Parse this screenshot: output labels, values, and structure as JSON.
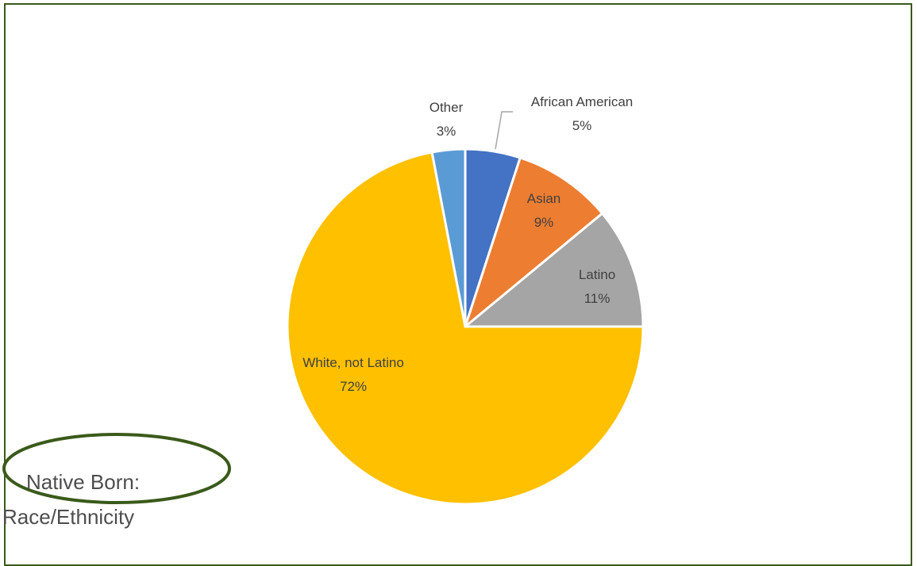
{
  "chart_data": {
    "type": "pie",
    "title": "",
    "slices": [
      {
        "label": "African American",
        "pct_label": "5%",
        "value": 5,
        "color": "#4472c4"
      },
      {
        "label": "Asian",
        "pct_label": "9%",
        "value": 9,
        "color": "#ed7d31"
      },
      {
        "label": "Latino",
        "pct_label": "11%",
        "value": 11,
        "color": "#a5a5a5"
      },
      {
        "label": "White, not Latino",
        "pct_label": "72%",
        "value": 72,
        "color": "#ffc000"
      },
      {
        "label": "Other",
        "pct_label": "3%",
        "value": 3,
        "color": "#5b9bd5"
      }
    ]
  },
  "caption": {
    "line1": "Native Born:",
    "line2": "Race/Ethnicity",
    "ellipse_color": "#3a5a1a"
  }
}
